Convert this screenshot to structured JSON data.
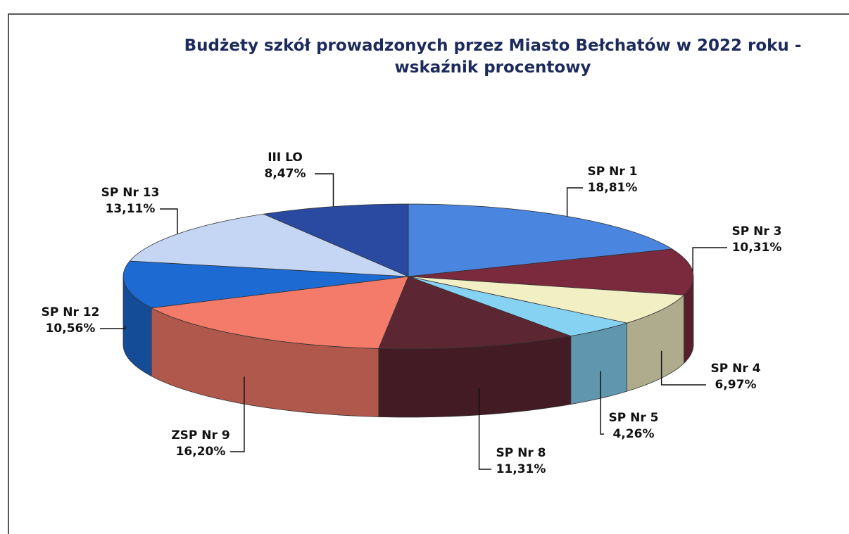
{
  "chart_data": {
    "type": "pie3d",
    "title": [
      "Budżety szkół prowadzonych przez Miasto Bełchatów w 2022 roku -",
      "wskaźnik procentowy"
    ],
    "categories": [
      "SP Nr 1",
      "SP Nr 3",
      "SP Nr 4",
      "SP Nr 5",
      "SP Nr 8",
      "ZSP Nr 9",
      "SP Nr 12",
      "SP Nr 13",
      "III LO"
    ],
    "values": [
      18.81,
      10.31,
      6.97,
      4.26,
      11.31,
      16.2,
      10.56,
      13.11,
      8.47
    ],
    "value_labels": [
      "18,81%",
      "10,31%",
      "6,97%",
      "4,26%",
      "11,31%",
      "16,20%",
      "10,56%",
      "13,11%",
      "8,47%"
    ],
    "colors": [
      "#4a86e0",
      "#7b2a3e",
      "#f2efc4",
      "#86d2f2",
      "#5c2632",
      "#f47a6a",
      "#1c6ad2",
      "#c4d6f4",
      "#2a4aa2"
    ]
  }
}
